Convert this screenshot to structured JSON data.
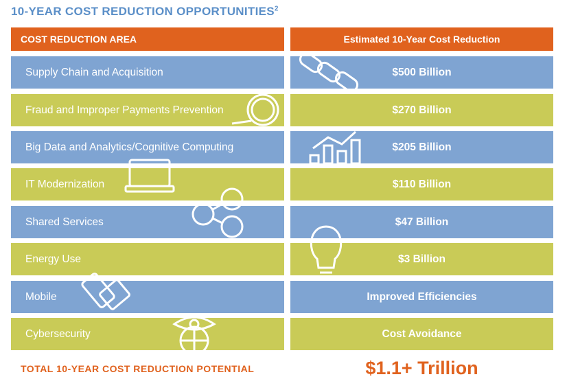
{
  "header": {
    "title": "10-YEAR COST REDUCTION OPPORTUNITIES",
    "title_note": "2"
  },
  "table": {
    "columns": [
      "COST REDUCTION AREA",
      "Estimated 10-Year Cost Reduction"
    ],
    "rows": [
      [
        "Supply Chain and Acquisition",
        "$500 Billion"
      ],
      [
        "Fraud and Improper Payments Prevention",
        "$270 Billion"
      ],
      [
        "Big Data and Analytics/Cognitive Computing",
        "$205 Billion"
      ],
      [
        "IT Modernization",
        "$110 Billion"
      ],
      [
        "Shared Services",
        "$47 Billion"
      ],
      [
        "Energy Use",
        "$3 Billion"
      ],
      [
        "Mobile",
        "Improved Efficiencies"
      ],
      [
        "Cybersecurity",
        "Cost Avoidance"
      ]
    ]
  },
  "footer": {
    "label": "TOTAL 10-YEAR COST REDUCTION POTENTIAL",
    "value": "$1.1+ Trillion"
  }
}
